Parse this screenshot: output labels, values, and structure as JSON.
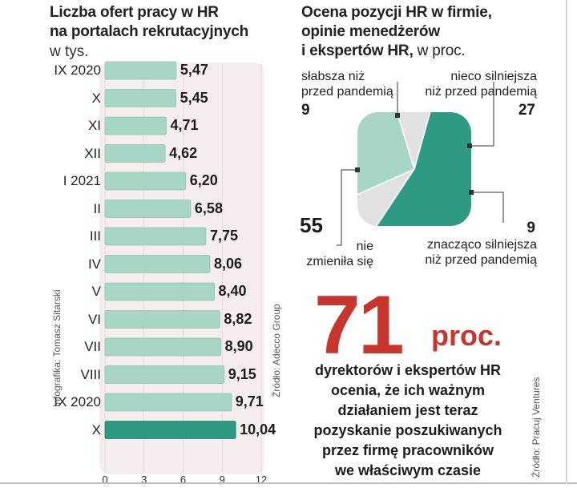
{
  "chart_data": [
    {
      "type": "bar",
      "orientation": "horizontal",
      "title": "Liczba ofert pracy w HR na portalach rekrutacyjnych",
      "title_lines": [
        "Liczba ofert pracy w HR",
        "na portalach rekrutacyjnych"
      ],
      "subtitle": "w tys.",
      "categories": [
        "IX 2020",
        "X",
        "XI",
        "XII",
        "I 2021",
        "II",
        "III",
        "IV",
        "V",
        "VI",
        "VII",
        "VIII",
        "IX 2020",
        "X"
      ],
      "values": [
        5.47,
        5.45,
        4.71,
        4.62,
        6.2,
        6.58,
        7.75,
        8.06,
        8.4,
        8.82,
        8.9,
        9.15,
        9.71,
        10.04
      ],
      "value_labels": [
        "5,47",
        "5,45",
        "4,71",
        "4,62",
        "6,20",
        "6,58",
        "7,75",
        "8,06",
        "8,40",
        "8,82",
        "8,90",
        "9,15",
        "9,71",
        "10,04"
      ],
      "xlim": [
        0,
        12
      ],
      "xticks": [
        0,
        3,
        6,
        9,
        12
      ],
      "highlight_index": 13,
      "colors": {
        "bar": "#a8d6c6",
        "highlight": "#2f9a82",
        "panel": "#f6eeee"
      }
    },
    {
      "type": "pie",
      "title": "Ocena pozycji HR w firmie, opinie menedżerów i ekspertów HR, w proc.",
      "title_lines": [
        "Ocena pozycji HR w firmie,",
        "opinie menedżerów"
      ],
      "title_line3_bold": "i ekspertów HR,",
      "title_line3_rest": " w proc.",
      "slices": [
        {
          "label": "słabsza niż przed pandemią",
          "lines": [
            "słabsza niż",
            "przed pandemią"
          ],
          "value": 9,
          "color": "#e1e1e1"
        },
        {
          "label": "nieco silniejsza niż przed pandemią",
          "lines": [
            "nieco silniejsza",
            "niż przed pandemią"
          ],
          "value": 27,
          "color": "#a8d6c6"
        },
        {
          "label": "znacząco silniejsza niż przed pandemią",
          "lines": [
            "znacząco silniejsza",
            "niż przed pandemią"
          ],
          "value": 9,
          "color": "#e1e1e1"
        },
        {
          "label": "nie zmieniła się",
          "lines": [
            "nie",
            "zmieniła się"
          ],
          "value": 55,
          "color": "#2f9a82"
        }
      ]
    }
  ],
  "highlight": {
    "number": "71",
    "unit": "proc.",
    "lines": [
      "dyrektorów i ekspertów HR",
      "ocenia, że ich ważnym",
      "działaniem jest teraz",
      "pozyskanie poszukiwanych",
      "przez firmę pracowników",
      "we właściwym czasie"
    ]
  },
  "credits": {
    "graphic": "Infografika: Tomasz Sitarski",
    "source_left": "Źródło: Adecco Group",
    "source_right": "Źródło: Pracuj Ventures"
  },
  "colors": {
    "accent_red": "#c8352c",
    "teal_dark": "#2f9a82",
    "teal_light": "#a8d6c6",
    "grey": "#e1e1e1"
  }
}
